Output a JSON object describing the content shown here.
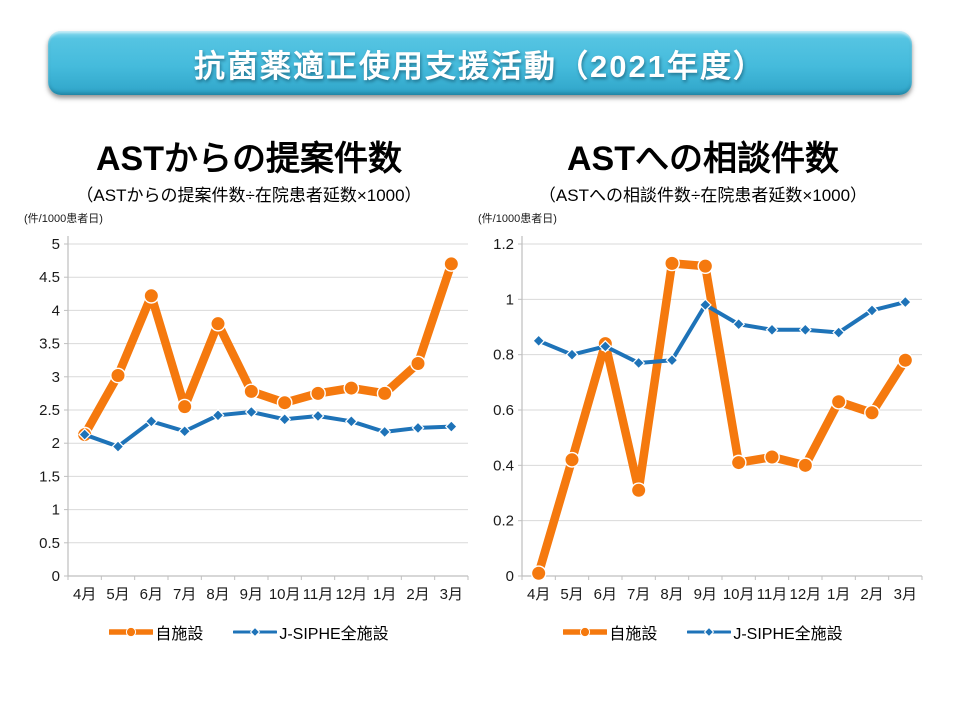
{
  "banner": {
    "title": "抗菌薬適正使用支援活動（2021年度）",
    "background_color": "#45BBDC",
    "text_color": "#FFFFFF"
  },
  "colors": {
    "own": "#F5790E",
    "jsiphe": "#1E73B8",
    "grid": "#D9D9D9",
    "axis": "#BFBFBF"
  },
  "chart_data": [
    {
      "type": "line",
      "title": "ASTからの提案件数",
      "subtitle": "（ASTからの提案件数÷在院患者延数×1000）",
      "ylabel": "(件/1000患者日)",
      "xlabel": "",
      "categories": [
        "4月",
        "5月",
        "6月",
        "7月",
        "8月",
        "9月",
        "10月",
        "11月",
        "12月",
        "1月",
        "2月",
        "3月"
      ],
      "series": [
        {
          "name": "自施設",
          "color_key": "own",
          "marker": "circle",
          "values": [
            2.13,
            3.02,
            4.22,
            2.55,
            3.8,
            2.78,
            2.61,
            2.75,
            2.83,
            2.75,
            3.2,
            4.7
          ]
        },
        {
          "name": "J-SIPHE全施設",
          "color_key": "jsiphe",
          "marker": "diamond",
          "values": [
            2.13,
            1.95,
            2.33,
            2.18,
            2.42,
            2.47,
            2.36,
            2.41,
            2.33,
            2.17,
            2.23,
            2.25
          ]
        }
      ],
      "ylim": [
        0,
        5
      ],
      "ytick_values": [
        0,
        0.5,
        1,
        1.5,
        2,
        2.5,
        3,
        3.5,
        4,
        4.5,
        5
      ],
      "ytick_labels": [
        "0",
        "0.5",
        "1",
        "1.5",
        "2",
        "2.5",
        "3",
        "3.5",
        "4",
        "4.5",
        "5"
      ],
      "grid": true,
      "legend_position": "bottom"
    },
    {
      "type": "line",
      "title": "ASTへの相談件数",
      "subtitle": "（ASTへの相談件数÷在院患者延数×1000）",
      "ylabel": "(件/1000患者日)",
      "xlabel": "",
      "categories": [
        "4月",
        "5月",
        "6月",
        "7月",
        "8月",
        "9月",
        "10月",
        "11月",
        "12月",
        "1月",
        "2月",
        "3月"
      ],
      "series": [
        {
          "name": "自施設",
          "color_key": "own",
          "marker": "circle",
          "values": [
            0.01,
            0.42,
            0.84,
            0.31,
            1.13,
            1.12,
            0.41,
            0.43,
            0.4,
            0.63,
            0.59,
            0.78
          ]
        },
        {
          "name": "J-SIPHE全施設",
          "color_key": "jsiphe",
          "marker": "diamond",
          "values": [
            0.85,
            0.8,
            0.83,
            0.77,
            0.78,
            0.98,
            0.91,
            0.89,
            0.89,
            0.88,
            0.96,
            0.99
          ]
        }
      ],
      "ylim": [
        0,
        1.2
      ],
      "ytick_values": [
        0,
        0.2,
        0.4,
        0.6,
        0.8,
        1,
        1.2
      ],
      "ytick_labels": [
        "0",
        "0.2",
        "0.4",
        "0.6",
        "0.8",
        "1",
        "1.2"
      ],
      "grid": true,
      "legend_position": "bottom"
    }
  ]
}
